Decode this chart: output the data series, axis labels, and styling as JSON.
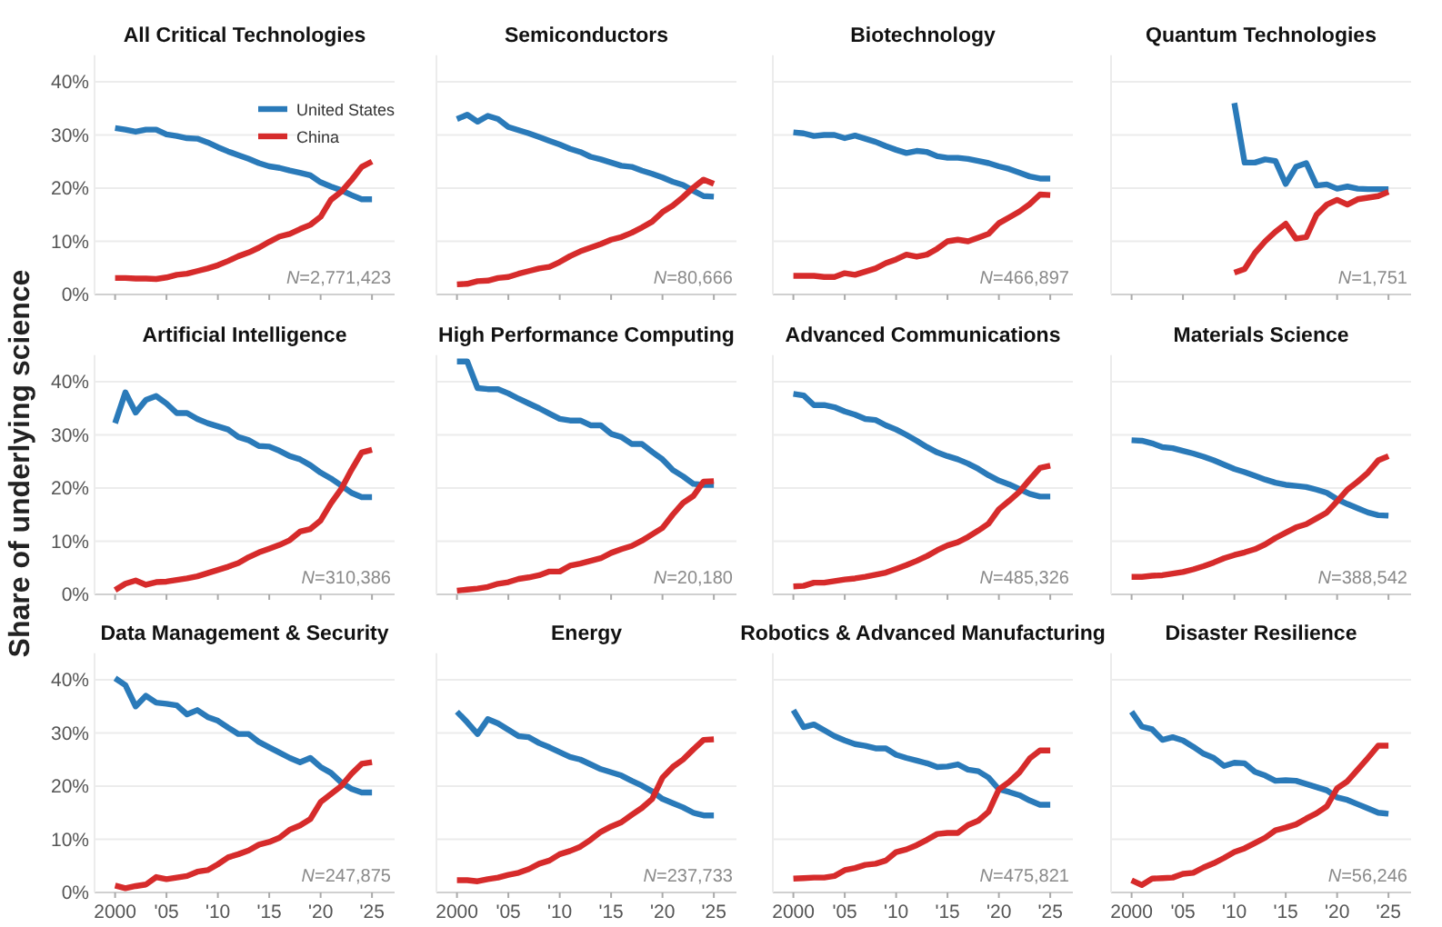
{
  "chart_data": [
    {
      "type": "line",
      "title": "All Critical Technologies",
      "ylim": [
        0,
        45
      ],
      "legend": "top right",
      "grid": "y",
      "tick_labels": "y",
      "xlim": [
        1998,
        2027.2
      ],
      "x": [
        2000,
        2001,
        2002,
        2003,
        2004,
        2005,
        2006,
        2007,
        2008,
        2009,
        2010,
        2011,
        2012,
        2013,
        2014,
        2015,
        2016,
        2017,
        2018,
        2019,
        2020,
        2021,
        2022,
        2023,
        2024,
        2025
      ],
      "xticks": [
        2000,
        2005,
        2010,
        2015,
        2020,
        2025
      ],
      "yticks": [
        {
          "value": 0,
          "label": "0%"
        },
        {
          "value": 10,
          "label": "10%"
        },
        {
          "value": 20,
          "label": "20%"
        },
        {
          "value": 30,
          "label": "30%"
        },
        {
          "value": 40,
          "label": "40%"
        }
      ],
      "annotations": [
        "N=2,771,423"
      ],
      "series": [
        {
          "name": "United States",
          "color": "#2a7ab9",
          "values": [
            31.3,
            31,
            30.6,
            31,
            31,
            30.1,
            29.8,
            29.4,
            29.3,
            28.6,
            27.7,
            26.9,
            26.2,
            25.5,
            24.7,
            24.1,
            23.8,
            23.3,
            22.9,
            22.4,
            21.1,
            20.3,
            19.6,
            18.7,
            17.9,
            17.9
          ]
        },
        {
          "name": "China",
          "color": "#d62b2b",
          "values": [
            3.1,
            3.1,
            3.0,
            3.0,
            2.9,
            3.2,
            3.7,
            3.9,
            4.4,
            4.9,
            5.5,
            6.3,
            7.2,
            7.9,
            8.8,
            9.9,
            10.9,
            11.4,
            12.3,
            13.1,
            14.6,
            17.8,
            19.3,
            21.5,
            24.0,
            25.0
          ]
        }
      ]
    },
    {
      "type": "line",
      "title": "Semiconductors",
      "ylim": [
        0,
        45
      ],
      "grid": "y",
      "tick_labels": false,
      "xlim": [
        1998,
        2027.2
      ],
      "x": [
        2000,
        2001,
        2002,
        2003,
        2004,
        2005,
        2006,
        2007,
        2008,
        2009,
        2010,
        2011,
        2012,
        2013,
        2014,
        2015,
        2016,
        2017,
        2018,
        2019,
        2020,
        2021,
        2022,
        2023,
        2024,
        2025
      ],
      "xticks": [
        2000,
        2005,
        2010,
        2015,
        2020,
        2025
      ],
      "yticks": [
        0,
        10,
        20,
        30,
        40
      ],
      "annotations": [
        "N=80,666"
      ],
      "series": [
        {
          "color": "#2a7ab9",
          "values": [
            33.0,
            33.8,
            32.5,
            33.6,
            33.0,
            31.5,
            30.9,
            30.3,
            29.6,
            28.9,
            28.2,
            27.4,
            26.8,
            25.9,
            25.4,
            24.8,
            24.2,
            24.0,
            23.3,
            22.7,
            22.0,
            21.2,
            20.6,
            19.5,
            18.5,
            18.4
          ]
        },
        {
          "color": "#d62b2b",
          "values": [
            1.9,
            2.0,
            2.5,
            2.6,
            3.1,
            3.3,
            3.9,
            4.4,
            4.9,
            5.2,
            6.1,
            7.2,
            8.1,
            8.8,
            9.5,
            10.3,
            10.8,
            11.6,
            12.6,
            13.7,
            15.5,
            16.7,
            18.3,
            20.1,
            21.6,
            20.8
          ]
        }
      ]
    },
    {
      "type": "line",
      "title": "Biotechnology",
      "ylim": [
        0,
        45
      ],
      "grid": "y",
      "tick_labels": false,
      "xlim": [
        1998,
        2027.2
      ],
      "x": [
        2000,
        2001,
        2002,
        2003,
        2004,
        2005,
        2006,
        2007,
        2008,
        2009,
        2010,
        2011,
        2012,
        2013,
        2014,
        2015,
        2016,
        2017,
        2018,
        2019,
        2020,
        2021,
        2022,
        2023,
        2024,
        2025
      ],
      "xticks": [
        2000,
        2005,
        2010,
        2015,
        2020,
        2025
      ],
      "yticks": [
        0,
        10,
        20,
        30,
        40
      ],
      "annotations": [
        "N=466,897"
      ],
      "series": [
        {
          "color": "#2a7ab9",
          "values": [
            30.5,
            30.3,
            29.8,
            30.0,
            30.0,
            29.4,
            29.9,
            29.3,
            28.7,
            27.9,
            27.2,
            26.6,
            27.0,
            26.8,
            26.0,
            25.7,
            25.7,
            25.5,
            25.1,
            24.7,
            24.1,
            23.6,
            22.9,
            22.2,
            21.8,
            21.8
          ]
        },
        {
          "color": "#d62b2b",
          "values": [
            3.5,
            3.5,
            3.5,
            3.3,
            3.3,
            4.0,
            3.7,
            4.3,
            4.9,
            5.9,
            6.6,
            7.5,
            7.1,
            7.5,
            8.6,
            10.0,
            10.3,
            10.0,
            10.7,
            11.4,
            13.4,
            14.5,
            15.6,
            17.0,
            18.8,
            18.7
          ]
        }
      ]
    },
    {
      "type": "line",
      "title": "Quantum Technologies",
      "ylim": [
        0,
        45
      ],
      "grid": "y",
      "tick_labels": false,
      "xlim": [
        1998,
        2027.2
      ],
      "xticks": [
        2000,
        2005,
        2010,
        2015,
        2020,
        2025
      ],
      "yticks": [
        0,
        10,
        20,
        30,
        40
      ],
      "annotations": [
        "N=1,751"
      ],
      "series": [
        {
          "color": "#2a7ab9",
          "x": [
            2010,
            2011,
            2012,
            2013,
            2014,
            2015,
            2016,
            2017,
            2018,
            2019,
            2020,
            2021,
            2022,
            2023,
            2024,
            2025
          ],
          "values": [
            36.0,
            24.8,
            24.8,
            25.4,
            25.1,
            20.8,
            24.0,
            24.7,
            20.5,
            20.7,
            19.9,
            20.3,
            19.9,
            19.8,
            19.8,
            19.8
          ]
        },
        {
          "color": "#d62b2b",
          "x": [
            2010,
            2011,
            2012,
            2013,
            2014,
            2015,
            2016,
            2017,
            2018,
            2019,
            2020,
            2021,
            2022,
            2023,
            2024,
            2025
          ],
          "values": [
            4.1,
            4.8,
            7.8,
            10.0,
            11.8,
            13.3,
            10.5,
            10.8,
            15.0,
            16.9,
            17.8,
            16.9,
            17.9,
            18.2,
            18.5,
            19.3
          ]
        }
      ]
    },
    {
      "type": "line",
      "title": "Artificial Intelligence",
      "ylim": [
        0,
        45
      ],
      "ylabel": "Share of underlying science",
      "grid": "y",
      "tick_labels": "y",
      "xlim": [
        1998,
        2027.2
      ],
      "x": [
        2000,
        2001,
        2002,
        2003,
        2004,
        2005,
        2006,
        2007,
        2008,
        2009,
        2010,
        2011,
        2012,
        2013,
        2014,
        2015,
        2016,
        2017,
        2018,
        2019,
        2020,
        2021,
        2022,
        2023,
        2024,
        2025
      ],
      "xticks": [
        2000,
        2005,
        2010,
        2015,
        2020,
        2025
      ],
      "yticks": [
        {
          "value": 0,
          "label": "0%"
        },
        {
          "value": 10,
          "label": "10%"
        },
        {
          "value": 20,
          "label": "20%"
        },
        {
          "value": 30,
          "label": "30%"
        },
        {
          "value": 40,
          "label": "40%"
        }
      ],
      "annotations": [
        "N=310,386"
      ],
      "series": [
        {
          "color": "#2a7ab9",
          "values": [
            32.2,
            38.0,
            34.2,
            36.6,
            37.3,
            35.9,
            34.1,
            34.1,
            33.0,
            32.2,
            31.6,
            31.0,
            29.6,
            29.0,
            27.9,
            27.8,
            27.0,
            26.0,
            25.4,
            24.3,
            22.9,
            21.8,
            20.5,
            19.1,
            18.3,
            18.3
          ]
        },
        {
          "color": "#d62b2b",
          "values": [
            0.8,
            2.0,
            2.6,
            1.8,
            2.3,
            2.4,
            2.7,
            3.0,
            3.4,
            4.0,
            4.6,
            5.2,
            5.9,
            7.0,
            7.9,
            8.6,
            9.3,
            10.2,
            11.8,
            12.3,
            13.9,
            17.1,
            19.8,
            23.4,
            26.7,
            27.2
          ]
        }
      ]
    },
    {
      "type": "line",
      "title": "High Performance Computing",
      "ylim": [
        0,
        45
      ],
      "grid": "y",
      "tick_labels": false,
      "xlim": [
        1998,
        2027.2
      ],
      "x": [
        2000,
        2001,
        2002,
        2003,
        2004,
        2005,
        2006,
        2007,
        2008,
        2009,
        2010,
        2011,
        2012,
        2013,
        2014,
        2015,
        2016,
        2017,
        2018,
        2019,
        2020,
        2021,
        2022,
        2023,
        2024,
        2025
      ],
      "xticks": [
        2000,
        2005,
        2010,
        2015,
        2020,
        2025
      ],
      "yticks": [
        0,
        10,
        20,
        30,
        40
      ],
      "annotations": [
        "N=20,180"
      ],
      "series": [
        {
          "color": "#2a7ab9",
          "values": [
            43.8,
            43.8,
            38.8,
            38.6,
            38.6,
            37.8,
            36.8,
            35.9,
            35.0,
            34.0,
            33.0,
            32.7,
            32.7,
            31.8,
            31.8,
            30.2,
            29.6,
            28.3,
            28.3,
            26.8,
            25.4,
            23.4,
            22.2,
            20.8,
            20.6,
            20.6
          ]
        },
        {
          "color": "#d62b2b",
          "values": [
            0.7,
            0.9,
            1.1,
            1.4,
            2.0,
            2.3,
            2.9,
            3.2,
            3.6,
            4.3,
            4.3,
            5.4,
            5.8,
            6.3,
            6.8,
            7.8,
            8.5,
            9.1,
            10.1,
            11.3,
            12.5,
            15.0,
            17.2,
            18.5,
            21.2,
            21.3
          ]
        }
      ]
    },
    {
      "type": "line",
      "title": "Advanced Communications",
      "ylim": [
        0,
        45
      ],
      "grid": "y",
      "tick_labels": false,
      "xlim": [
        1998,
        2027.2
      ],
      "x": [
        2000,
        2001,
        2002,
        2003,
        2004,
        2005,
        2006,
        2007,
        2008,
        2009,
        2010,
        2011,
        2012,
        2013,
        2014,
        2015,
        2016,
        2017,
        2018,
        2019,
        2020,
        2021,
        2022,
        2023,
        2024,
        2025
      ],
      "xticks": [
        2000,
        2005,
        2010,
        2015,
        2020,
        2025
      ],
      "yticks": [
        0,
        10,
        20,
        30,
        40
      ],
      "annotations": [
        "N=485,326"
      ],
      "series": [
        {
          "color": "#2a7ab9",
          "values": [
            37.7,
            37.4,
            35.6,
            35.6,
            35.2,
            34.4,
            33.8,
            33.0,
            32.8,
            31.8,
            31.0,
            30.0,
            28.9,
            27.7,
            26.7,
            26.0,
            25.4,
            24.6,
            23.6,
            22.4,
            21.4,
            20.7,
            19.8,
            18.9,
            18.4,
            18.4
          ]
        },
        {
          "color": "#d62b2b",
          "values": [
            1.5,
            1.6,
            2.2,
            2.2,
            2.5,
            2.8,
            3.0,
            3.3,
            3.7,
            4.1,
            4.8,
            5.5,
            6.3,
            7.2,
            8.3,
            9.2,
            9.8,
            10.8,
            12.0,
            13.3,
            16.0,
            17.6,
            19.3,
            21.6,
            23.8,
            24.2
          ]
        }
      ]
    },
    {
      "type": "line",
      "title": "Materials Science",
      "ylim": [
        0,
        45
      ],
      "grid": "y",
      "tick_labels": false,
      "xlim": [
        1998,
        2027.2
      ],
      "x": [
        2000,
        2001,
        2002,
        2003,
        2004,
        2005,
        2006,
        2007,
        2008,
        2009,
        2010,
        2011,
        2012,
        2013,
        2014,
        2015,
        2016,
        2017,
        2018,
        2019,
        2020,
        2021,
        2022,
        2023,
        2024,
        2025
      ],
      "xticks": [
        2000,
        2005,
        2010,
        2015,
        2020,
        2025
      ],
      "yticks": [
        0,
        10,
        20,
        30,
        40
      ],
      "annotations": [
        "N=388,542"
      ],
      "series": [
        {
          "color": "#2a7ab9",
          "values": [
            29.0,
            28.9,
            28.4,
            27.7,
            27.5,
            27.0,
            26.5,
            25.9,
            25.2,
            24.4,
            23.6,
            23.0,
            22.3,
            21.6,
            21.0,
            20.6,
            20.4,
            20.2,
            19.7,
            19.1,
            17.9,
            17.0,
            16.2,
            15.4,
            14.9,
            14.8
          ]
        },
        {
          "color": "#d62b2b",
          "values": [
            3.3,
            3.3,
            3.5,
            3.6,
            3.9,
            4.2,
            4.7,
            5.3,
            6.0,
            6.8,
            7.4,
            7.9,
            8.5,
            9.4,
            10.6,
            11.6,
            12.6,
            13.2,
            14.3,
            15.4,
            17.5,
            19.7,
            21.2,
            22.9,
            25.2,
            26.0
          ]
        }
      ]
    },
    {
      "type": "line",
      "title": "Data Management & Security",
      "ylim": [
        0,
        45
      ],
      "grid": "y",
      "xlim": [
        1998,
        2027.2
      ],
      "x": [
        2000,
        2001,
        2002,
        2003,
        2004,
        2005,
        2006,
        2007,
        2008,
        2009,
        2010,
        2011,
        2012,
        2013,
        2014,
        2015,
        2016,
        2017,
        2018,
        2019,
        2020,
        2021,
        2022,
        2023,
        2024,
        2025
      ],
      "xticks": [
        {
          "value": 2000,
          "label": "2000"
        },
        {
          "value": 2005,
          "label": "'05"
        },
        {
          "value": 2010,
          "label": "'10"
        },
        {
          "value": 2015,
          "label": "'15"
        },
        {
          "value": 2020,
          "label": "'20"
        },
        {
          "value": 2025,
          "label": "'25"
        }
      ],
      "yticks": [
        {
          "value": 0,
          "label": "0%"
        },
        {
          "value": 10,
          "label": "10%"
        },
        {
          "value": 20,
          "label": "20%"
        },
        {
          "value": 30,
          "label": "30%"
        },
        {
          "value": 40,
          "label": "40%"
        }
      ],
      "annotations": [
        "N=247,875"
      ],
      "series": [
        {
          "color": "#2a7ab9",
          "values": [
            40.3,
            39.0,
            35.0,
            37.0,
            35.7,
            35.5,
            35.2,
            33.5,
            34.3,
            33.0,
            32.3,
            31.0,
            29.8,
            29.8,
            28.3,
            27.3,
            26.3,
            25.3,
            24.5,
            25.3,
            23.6,
            22.5,
            20.7,
            19.5,
            18.8,
            18.8
          ]
        },
        {
          "color": "#d62b2b",
          "values": [
            1.3,
            0.8,
            1.2,
            1.5,
            2.9,
            2.5,
            2.8,
            3.1,
            3.9,
            4.2,
            5.3,
            6.6,
            7.2,
            7.9,
            9.0,
            9.5,
            10.3,
            11.8,
            12.6,
            13.8,
            17.0,
            18.5,
            20.0,
            22.3,
            24.2,
            24.5
          ]
        }
      ]
    },
    {
      "type": "line",
      "title": "Energy",
      "ylim": [
        0,
        45
      ],
      "grid": "y",
      "tick_labels": "x",
      "xlim": [
        1998,
        2027.2
      ],
      "x": [
        2000,
        2001,
        2002,
        2003,
        2004,
        2005,
        2006,
        2007,
        2008,
        2009,
        2010,
        2011,
        2012,
        2013,
        2014,
        2015,
        2016,
        2017,
        2018,
        2019,
        2020,
        2021,
        2022,
        2023,
        2024,
        2025
      ],
      "xticks": [
        {
          "value": 2000,
          "label": "2000"
        },
        {
          "value": 2005,
          "label": "'05"
        },
        {
          "value": 2010,
          "label": "'10"
        },
        {
          "value": 2015,
          "label": "'15"
        },
        {
          "value": 2020,
          "label": "'20"
        },
        {
          "value": 2025,
          "label": "'25"
        }
      ],
      "yticks": [
        0,
        10,
        20,
        30,
        40
      ],
      "annotations": [
        "N=237,733"
      ],
      "series": [
        {
          "color": "#2a7ab9",
          "values": [
            34.0,
            32.0,
            29.8,
            32.6,
            31.8,
            30.6,
            29.4,
            29.2,
            28.1,
            27.3,
            26.4,
            25.5,
            25.0,
            24.1,
            23.2,
            22.6,
            22.0,
            21.0,
            20.1,
            19.0,
            17.6,
            16.8,
            16.0,
            15.0,
            14.5,
            14.5
          ]
        },
        {
          "color": "#d62b2b",
          "values": [
            2.3,
            2.3,
            2.1,
            2.5,
            2.8,
            3.3,
            3.7,
            4.4,
            5.4,
            6.0,
            7.2,
            7.8,
            8.6,
            9.9,
            11.4,
            12.4,
            13.2,
            14.6,
            15.9,
            17.6,
            21.6,
            23.6,
            25.0,
            26.9,
            28.7,
            28.8
          ]
        }
      ]
    },
    {
      "type": "line",
      "title": "Robotics & Advanced Manufacturing",
      "ylim": [
        0,
        45
      ],
      "grid": "y",
      "tick_labels": "x",
      "xlim": [
        1998,
        2027.2
      ],
      "x": [
        2000,
        2001,
        2002,
        2003,
        2004,
        2005,
        2006,
        2007,
        2008,
        2009,
        2010,
        2011,
        2012,
        2013,
        2014,
        2015,
        2016,
        2017,
        2018,
        2019,
        2020,
        2021,
        2022,
        2023,
        2024,
        2025
      ],
      "xticks": [
        {
          "value": 2000,
          "label": "2000"
        },
        {
          "value": 2005,
          "label": "'05"
        },
        {
          "value": 2010,
          "label": "'10"
        },
        {
          "value": 2015,
          "label": "'15"
        },
        {
          "value": 2020,
          "label": "'20"
        },
        {
          "value": 2025,
          "label": "'25"
        }
      ],
      "yticks": [
        0,
        10,
        20,
        30,
        40
      ],
      "annotations": [
        "N=475,821"
      ],
      "series": [
        {
          "color": "#2a7ab9",
          "values": [
            34.3,
            31.1,
            31.6,
            30.5,
            29.4,
            28.6,
            27.9,
            27.6,
            27.1,
            27.1,
            25.9,
            25.3,
            24.8,
            24.3,
            23.6,
            23.7,
            24.1,
            23.1,
            22.8,
            21.6,
            19.4,
            18.9,
            18.3,
            17.3,
            16.5,
            16.5
          ]
        },
        {
          "color": "#d62b2b",
          "values": [
            2.6,
            2.7,
            2.8,
            2.8,
            3.1,
            4.2,
            4.6,
            5.2,
            5.4,
            6.0,
            7.6,
            8.1,
            8.9,
            9.9,
            11.0,
            11.2,
            11.2,
            12.7,
            13.5,
            15.2,
            19.4,
            20.8,
            22.6,
            25.2,
            26.7,
            26.7
          ]
        }
      ]
    },
    {
      "type": "line",
      "title": "Disaster Resilience",
      "ylim": [
        0,
        45
      ],
      "grid": "y",
      "tick_labels": "x",
      "xlim": [
        1998,
        2027.2
      ],
      "x": [
        2000,
        2001,
        2002,
        2003,
        2004,
        2005,
        2006,
        2007,
        2008,
        2009,
        2010,
        2011,
        2012,
        2013,
        2014,
        2015,
        2016,
        2017,
        2018,
        2019,
        2020,
        2021,
        2022,
        2023,
        2024,
        2025
      ],
      "xticks": [
        {
          "value": 2000,
          "label": "2000"
        },
        {
          "value": 2005,
          "label": "'05"
        },
        {
          "value": 2010,
          "label": "'10"
        },
        {
          "value": 2015,
          "label": "'15"
        },
        {
          "value": 2020,
          "label": "'20"
        },
        {
          "value": 2025,
          "label": "'25"
        }
      ],
      "yticks": [
        0,
        10,
        20,
        30,
        40
      ],
      "annotations": [
        "N=56,246"
      ],
      "series": [
        {
          "color": "#2a7ab9",
          "values": [
            34.0,
            31.2,
            30.7,
            28.7,
            29.2,
            28.6,
            27.4,
            26.1,
            25.3,
            23.8,
            24.4,
            24.3,
            22.7,
            22.0,
            21.0,
            21.1,
            21.0,
            20.4,
            19.8,
            19.2,
            17.9,
            17.4,
            16.6,
            15.8,
            15.0,
            14.8
          ]
        },
        {
          "color": "#d62b2b",
          "values": [
            2.3,
            1.4,
            2.6,
            2.7,
            2.8,
            3.5,
            3.7,
            4.7,
            5.5,
            6.5,
            7.6,
            8.3,
            9.3,
            10.3,
            11.7,
            12.2,
            12.8,
            13.9,
            14.9,
            16.2,
            19.6,
            20.9,
            23.1,
            25.3,
            27.6,
            27.6
          ]
        }
      ]
    }
  ]
}
